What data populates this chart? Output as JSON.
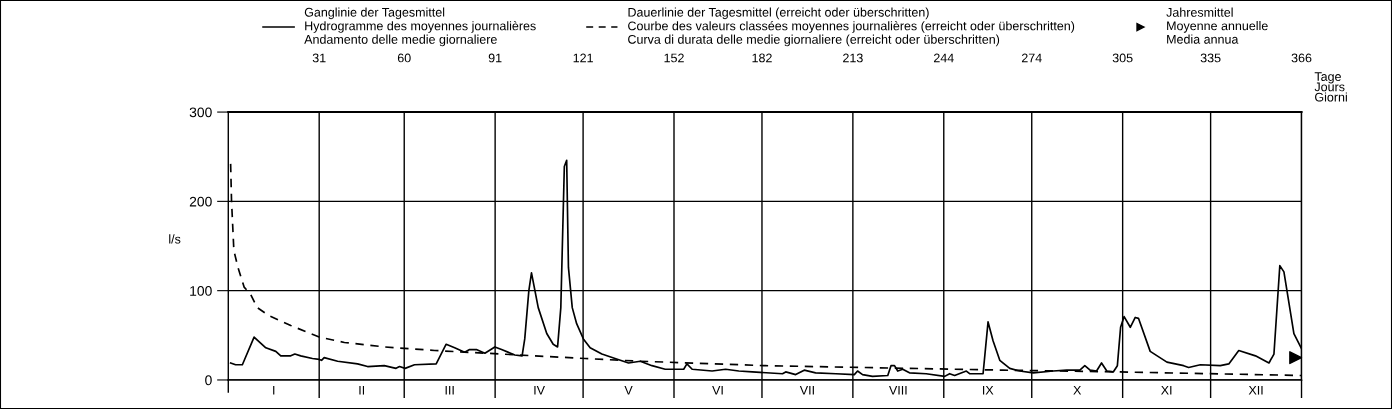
{
  "chart_data": {
    "type": "line",
    "ylabel": "l/s",
    "xlabel": "Tage\nJours\nGiorni",
    "xlim": [
      0,
      366
    ],
    "xticks": [
      31,
      60,
      91,
      121,
      152,
      182,
      213,
      244,
      274,
      305,
      335,
      366
    ],
    "annotations": [
      "I",
      "II",
      "III",
      "IV",
      "V",
      "VI",
      "VII",
      "VIII",
      "IX",
      "X",
      "XI",
      "XII"
    ],
    "ylim": [
      0,
      300
    ],
    "yticks": [
      0,
      100,
      200,
      300
    ],
    "grid": true,
    "legend": "top",
    "series": [
      {
        "name": "Ganglinie der Tagesmittel\nHydrogramme des moyennes journalières\nAndamento delle medie giornaliere",
        "line_style": "solid",
        "color": "#000000",
        "x": [
          0.8,
          2.5,
          4.8,
          8.8,
          12.8,
          16.2,
          17.9,
          21.3,
          22.7,
          24.7,
          28.7,
          31,
          31.8,
          32.7,
          37.3,
          44.1,
          47.5,
          53.2,
          57.2,
          58.4,
          60.3,
          63.5,
          70.9,
          74.3,
          77.2,
          80.6,
          82.3,
          84.6,
          87.5,
          90.9,
          93.2,
          97.7,
          100.2,
          101.1,
          102.5,
          103.4,
          105.7,
          108.6,
          110.8,
          112.3,
          113.4,
          114.6,
          115.4,
          116.0,
          117.3,
          118.8,
          121.1,
          123.4,
          127.4,
          131.9,
          136.5,
          140.5,
          144.5,
          149.0,
          155.3,
          156.4,
          158.2,
          165.0,
          169.6,
          174.1,
          178.7,
          189,
          190.1,
          193.5,
          196.4,
          200.3,
          207.2,
          213.5,
          214.6,
          216.3,
          219.7,
          224.9,
          226.0,
          227.2,
          228.3,
          230,
          232.3,
          238,
          244.3,
          246,
          247.7,
          251.7,
          252.8,
          257.4,
          259.1,
          260.8,
          263.1,
          266.5,
          269.9,
          274.5,
          281.3,
          285.9,
          290.4,
          292.1,
          293.9,
          296.1,
          297.8,
          299.6,
          301.8,
          303.2,
          304.3,
          305.5,
          307.6,
          309.3,
          310.4,
          314.4,
          320.1,
          325.8,
          327.5,
          331.5,
          338.3,
          341.2,
          344.6,
          350.3,
          354.9,
          356.6,
          358.6,
          360.0,
          363.4,
          366
        ],
        "values": [
          19,
          17,
          17,
          48,
          36,
          32,
          27,
          27,
          29,
          27,
          24,
          23,
          22,
          25,
          21,
          18,
          15,
          16,
          13,
          15,
          13,
          17,
          18,
          40,
          36,
          31,
          34,
          34,
          30,
          37,
          34,
          28,
          27,
          46,
          100,
          120,
          81,
          52,
          40,
          37,
          81,
          239,
          246,
          126,
          81,
          63,
          46,
          36,
          29,
          24,
          19,
          21,
          16,
          12,
          12,
          18,
          12,
          10,
          12,
          10,
          9,
          7,
          9,
          6,
          11,
          8,
          7,
          6,
          10,
          6,
          4,
          5,
          16,
          16,
          10,
          12,
          8,
          7,
          4,
          7,
          5,
          10,
          7,
          7,
          65,
          44,
          22,
          13,
          10,
          8,
          10,
          11,
          11,
          16,
          11,
          10,
          19,
          10,
          9,
          16,
          59,
          71,
          59,
          70,
          69,
          32,
          20,
          16,
          14,
          17,
          16,
          18,
          33,
          27,
          19,
          29,
          128,
          121,
          52,
          35
        ]
      },
      {
        "name": "Dauerlinie der Tagesmittel (erreicht oder überschritten)\nCourbe des valeurs classées moyennes journalières (erreicht oder überschritten)\nCurva di durata delle medie giornaliere (erreicht oder überschritten)",
        "line_style": "dashed",
        "color": "#000000",
        "x": [
          0.8,
          1.1,
          1.9,
          3.3,
          5.4,
          7.6,
          9.9,
          13.9,
          21.3,
          31,
          39.6,
          53.2,
          70.4,
          93.2,
          121.7,
          140.5,
          183.2,
          264.2,
          304.1,
          366
        ],
        "values": [
          242,
          201,
          145,
          126,
          104,
          96,
          81,
          72,
          61,
          48,
          42,
          37,
          33,
          29,
          24,
          21,
          16,
          11,
          9,
          5
        ]
      },
      {
        "name": "Jahresmittel\nMoyenne annuelle\nMedia annua",
        "type": "scatter",
        "marker": "triangle",
        "color": "#000000",
        "x": [
          364
        ],
        "values": [
          25
        ]
      }
    ]
  }
}
